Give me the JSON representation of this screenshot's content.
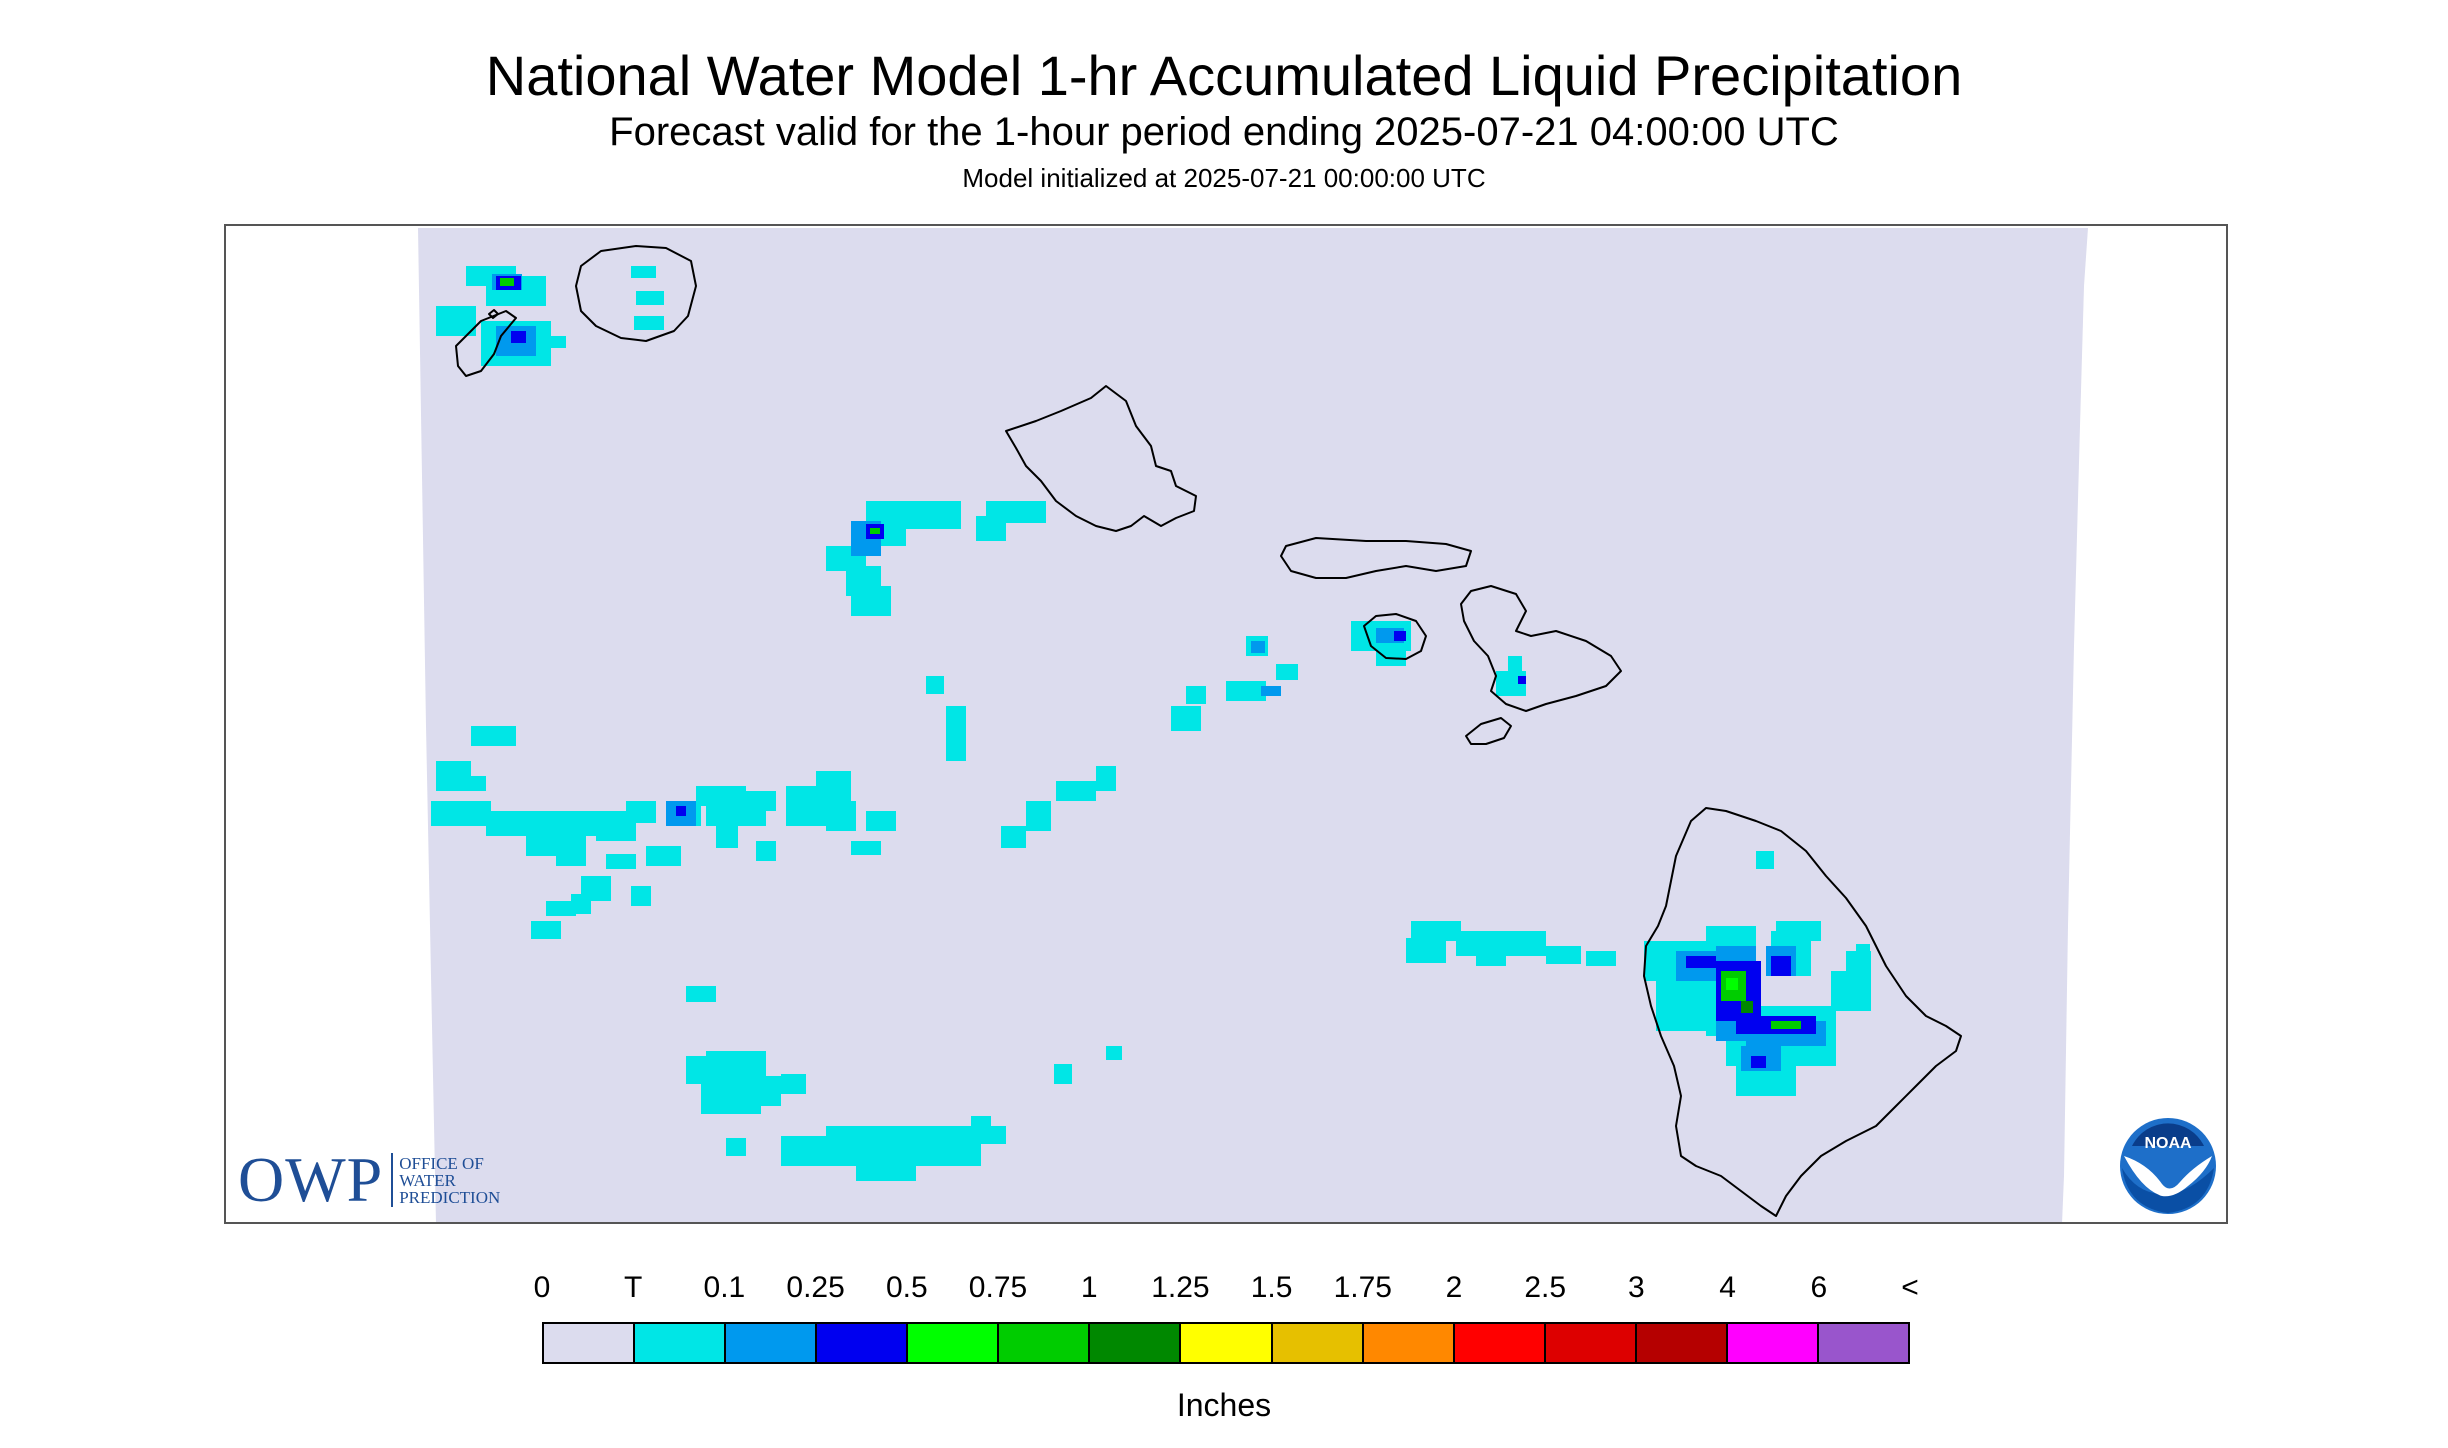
{
  "header": {
    "title": "National Water Model 1-hr Accumulated Liquid Precipitation",
    "subtitle": "Forecast valid for the 1-hour period ending 2025-07-21 04:00:00 UTC",
    "init": "Model initialized at 2025-07-21 00:00:00 UTC"
  },
  "logos": {
    "owp_abbr": "OWP",
    "owp_line1": "OFFICE OF",
    "owp_line2": "WATER",
    "owp_line3": "PREDICTION",
    "noaa": "NOAA"
  },
  "legend": {
    "labels": [
      "0",
      "T",
      "0.1",
      "0.25",
      "0.5",
      "0.75",
      "1",
      "1.25",
      "1.5",
      "1.75",
      "2",
      "2.5",
      "3",
      "4",
      "6",
      "<"
    ],
    "colors": [
      "#dcdcee",
      "#00e6e6",
      "#0099ee",
      "#0000f0",
      "#00ff00",
      "#00cc00",
      "#008800",
      "#ffff00",
      "#e6c000",
      "#ff8800",
      "#ff0000",
      "#dd0000",
      "#b50000",
      "#ff00ff",
      "#9955cc"
    ],
    "units": "Inches"
  },
  "colors": {
    "background_precip": "#dcdcee",
    "trace": "#00e6e6",
    "light": "#0099ee",
    "medium": "#0000f0",
    "green": "#00ff00",
    "coast": "#000000"
  }
}
